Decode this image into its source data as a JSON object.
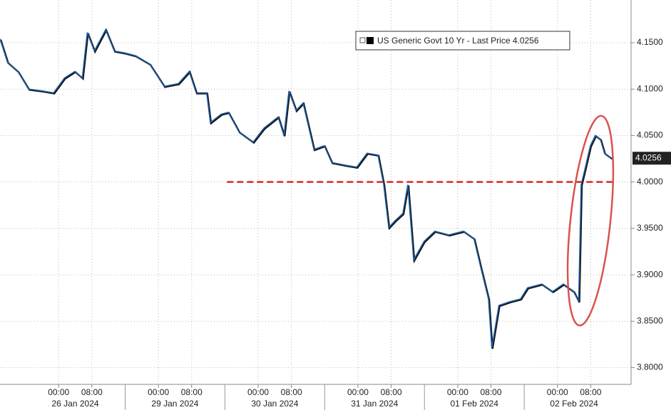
{
  "chart_data": {
    "type": "line",
    "series": [
      {
        "name": "US Generic Govt 10 Yr - Last Price 4.0256",
        "color": "#1f5da3",
        "x": [
          -14.1,
          -12.3,
          -9.8,
          -7.2,
          -3.8,
          -1.2,
          1.4,
          3.9,
          5.7,
          6.9,
          8.6,
          11.3,
          13.4,
          15.9,
          18.5,
          21.9,
          25.4,
          28.8,
          31.4,
          33.1,
          35.6,
          36.5,
          39.1,
          40.8,
          43.4,
          46.8,
          49.4,
          52.8,
          54.2,
          55.4,
          57.1,
          58.8,
          61.4,
          63.9,
          65.7,
          69.1,
          71.7,
          74.2,
          76.8,
          78.2,
          79.4,
          81.1,
          82.8,
          84.0,
          85.4,
          87.9,
          90.5,
          93.9,
          97.4,
          99.9,
          101.7,
          103.4,
          104.2,
          105.9,
          108.5,
          111.1,
          112.8,
          116.2,
          118.8,
          121.4,
          123.9,
          125.1,
          125.7,
          126.5,
          127.9,
          129.1,
          130.3,
          131.3,
          133.0
        ],
        "values": [
          4.154,
          4.129,
          4.119,
          4.1,
          4.098,
          4.096,
          4.112,
          4.119,
          4.112,
          4.161,
          4.141,
          4.164,
          4.141,
          4.139,
          4.136,
          4.127,
          4.103,
          4.106,
          4.119,
          4.096,
          4.096,
          4.064,
          4.073,
          4.075,
          4.054,
          4.043,
          4.058,
          4.07,
          4.05,
          4.098,
          4.077,
          4.085,
          4.035,
          4.039,
          4.021,
          4.018,
          4.016,
          4.031,
          4.029,
          3.997,
          3.951,
          3.959,
          3.966,
          3.997,
          3.916,
          3.936,
          3.947,
          3.943,
          3.947,
          3.939,
          3.905,
          3.874,
          3.821,
          3.867,
          3.871,
          3.874,
          3.886,
          3.89,
          3.882,
          3.89,
          3.882,
          3.871,
          3.997,
          4.012,
          4.039,
          4.05,
          4.046,
          4.031,
          4.0256
        ]
      }
    ],
    "last_value": 4.0256,
    "reference_line": {
      "value": 4.0,
      "color": "#d62728",
      "x": [
        40.5,
        133.8
      ]
    },
    "xlim": [
      -14.1,
      137.7
    ],
    "xticks": [
      {
        "value": 0,
        "label": "00:00"
      },
      {
        "value": 8,
        "label": "08:00"
      },
      {
        "value": 24,
        "label": "00:00"
      },
      {
        "value": 32,
        "label": "08:00"
      },
      {
        "value": 48,
        "label": "00:00"
      },
      {
        "value": 56,
        "label": "08:00"
      },
      {
        "value": 72,
        "label": "00:00"
      },
      {
        "value": 80,
        "label": "08:00"
      },
      {
        "value": 96,
        "label": "00:00"
      },
      {
        "value": 104,
        "label": "08:00"
      },
      {
        "value": 120,
        "label": "00:00"
      },
      {
        "value": 128,
        "label": "08:00"
      }
    ],
    "x_dates": [
      "26 Jan 2024",
      "29 Jan 2024",
      "30 Jan 2024",
      "31 Jan 2024",
      "01 Feb 2024",
      "02 Feb 2024"
    ],
    "ylim": [
      3.782,
      4.196
    ],
    "yticks": [
      {
        "value": 3.8,
        "label": "3.8000"
      },
      {
        "value": 3.85,
        "label": "3.8500"
      },
      {
        "value": 3.9,
        "label": "3.9000"
      },
      {
        "value": 3.95,
        "label": "3.9500"
      },
      {
        "value": 4.0,
        "label": "4.0000"
      },
      {
        "value": 4.05,
        "label": "4.0500"
      },
      {
        "value": 4.1,
        "label": "4.1000"
      },
      {
        "value": 4.15,
        "label": "4.1500"
      }
    ],
    "grid": true
  }
}
